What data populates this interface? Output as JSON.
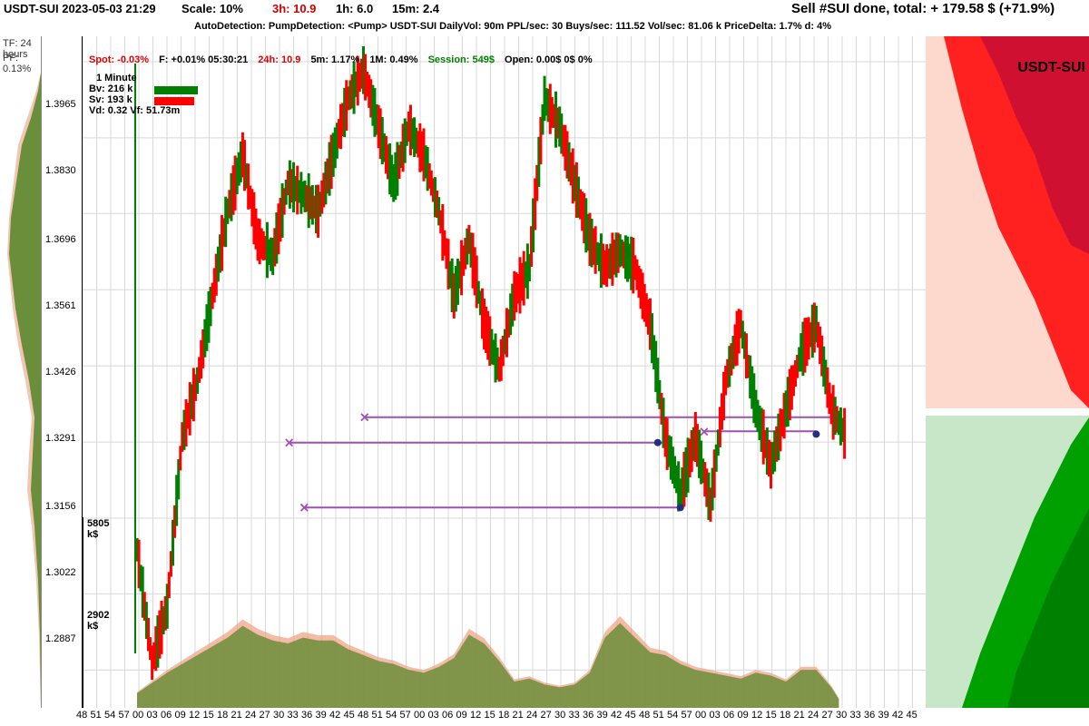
{
  "header": {
    "title": "USDT-SUI 2023-05-03 21:29",
    "scale": "Scale: 10%",
    "h3": "3h:  10.9",
    "h1": "1h:  6.0",
    "m15": "15m:  2.4",
    "sell_msg": "Sell #SUI done, total:  + 179.58 $ (+71.9%)"
  },
  "subheader": {
    "text": "AutoDetection:  PumpDetection: <Pump> USDT-SUI  DailyVol: 90m PPL/sec: 30  Buys/sec: 111.52 Vol/sec: 81.06 k PriceDelta: 1.7%  d: 4%"
  },
  "symbol": "USDT-SUI",
  "left_panel": {
    "tf": "TF: 24 hours",
    "pf": "PF: 0.13%"
  },
  "price_axis": [
    "1.3965",
    "1.3830",
    "1.3696",
    "1.3561",
    "1.3426",
    "1.3291",
    "1.3156",
    "1.3022",
    "1.2887"
  ],
  "volume_axis": [
    "5805 k$",
    "2902 k$"
  ],
  "stats": {
    "spot": "Spot: -0.03%",
    "f": "F: +0.01% 05:30:21",
    "h24": "24h: 10.9",
    "m5": "5m: 1.17%",
    "m1": "1M: 0.49%",
    "session": "Session: 549$",
    "open": "Open: 0.00$  0$  0%"
  },
  "info": {
    "interval": "1 Minute",
    "bv": "Bv: 216 k",
    "sv": "Sv: 193 k",
    "vd": "Vd: 0.32 Vf: 51.73m"
  },
  "x_axis": [
    "48",
    "51",
    "54",
    "57",
    "00",
    "03",
    "06",
    "09",
    "12",
    "15",
    "18",
    "21",
    "24",
    "27",
    "30",
    "33",
    "36",
    "39",
    "42",
    "45",
    "48",
    "51",
    "54",
    "57",
    "00",
    "03",
    "06",
    "09",
    "12",
    "15",
    "18",
    "21",
    "24",
    "27",
    "30",
    "33",
    "36",
    "39",
    "42",
    "45",
    "48",
    "51",
    "54",
    "57",
    "00",
    "03",
    "06",
    "09",
    "12",
    "15",
    "18",
    "21",
    "24",
    "27",
    "30",
    "33",
    "36",
    "39",
    "42",
    "45"
  ],
  "chart_data": {
    "type": "line",
    "y_ticks": [
      1.3965,
      1.383,
      1.3696,
      1.3561,
      1.3426,
      1.3291,
      1.3156,
      1.3022,
      1.2887
    ],
    "price": [
      [
        0,
        1.31
      ],
      [
        2,
        1.29
      ],
      [
        4,
        1.3
      ],
      [
        6,
        1.33
      ],
      [
        8,
        1.34
      ],
      [
        10,
        1.355
      ],
      [
        12,
        1.37
      ],
      [
        14,
        1.38
      ],
      [
        16,
        1.365
      ],
      [
        18,
        1.362
      ],
      [
        20,
        1.375
      ],
      [
        22,
        1.373
      ],
      [
        24,
        1.37
      ],
      [
        26,
        1.38
      ],
      [
        28,
        1.39
      ],
      [
        30,
        1.395
      ],
      [
        32,
        1.385
      ],
      [
        34,
        1.375
      ],
      [
        36,
        1.385
      ],
      [
        38,
        1.38
      ],
      [
        40,
        1.37
      ],
      [
        42,
        1.355
      ],
      [
        44,
        1.365
      ],
      [
        46,
        1.35
      ],
      [
        48,
        1.342
      ],
      [
        50,
        1.355
      ],
      [
        52,
        1.36
      ],
      [
        54,
        1.39
      ],
      [
        56,
        1.385
      ],
      [
        58,
        1.375
      ],
      [
        60,
        1.365
      ],
      [
        62,
        1.36
      ],
      [
        64,
        1.363
      ],
      [
        66,
        1.36
      ],
      [
        68,
        1.35
      ],
      [
        70,
        1.33
      ],
      [
        72,
        1.32
      ],
      [
        74,
        1.33
      ],
      [
        76,
        1.318
      ],
      [
        78,
        1.34
      ],
      [
        80,
        1.35
      ],
      [
        82,
        1.335
      ],
      [
        84,
        1.325
      ],
      [
        86,
        1.335
      ],
      [
        88,
        1.345
      ],
      [
        90,
        1.35
      ],
      [
        92,
        1.335
      ],
      [
        94,
        1.33
      ]
    ],
    "volume": [
      [
        0,
        500
      ],
      [
        4,
        1200
      ],
      [
        8,
        1800
      ],
      [
        12,
        2400
      ],
      [
        14,
        2800
      ],
      [
        16,
        2500
      ],
      [
        18,
        2300
      ],
      [
        20,
        2200
      ],
      [
        22,
        2400
      ],
      [
        24,
        2300
      ],
      [
        26,
        2300
      ],
      [
        28,
        2000
      ],
      [
        30,
        1800
      ],
      [
        32,
        1600
      ],
      [
        34,
        1500
      ],
      [
        36,
        1300
      ],
      [
        38,
        1200
      ],
      [
        40,
        1400
      ],
      [
        42,
        1700
      ],
      [
        44,
        2500
      ],
      [
        46,
        2200
      ],
      [
        48,
        1600
      ],
      [
        50,
        900
      ],
      [
        52,
        1000
      ],
      [
        54,
        800
      ],
      [
        56,
        700
      ],
      [
        58,
        800
      ],
      [
        60,
        1200
      ],
      [
        62,
        2400
      ],
      [
        64,
        2900
      ],
      [
        66,
        2400
      ],
      [
        68,
        1900
      ],
      [
        70,
        1800
      ],
      [
        72,
        1500
      ],
      [
        74,
        1300
      ],
      [
        76,
        1200
      ],
      [
        78,
        1100
      ],
      [
        80,
        1000
      ],
      [
        82,
        1200
      ],
      [
        84,
        1100
      ],
      [
        86,
        900
      ],
      [
        88,
        1300
      ],
      [
        90,
        1300
      ],
      [
        92,
        700
      ],
      [
        93,
        300
      ]
    ],
    "y_range": [
      1.282,
      1.401
    ]
  },
  "colors": {
    "up": "#008000",
    "down": "#ff0000",
    "purple": "#a050b0"
  }
}
